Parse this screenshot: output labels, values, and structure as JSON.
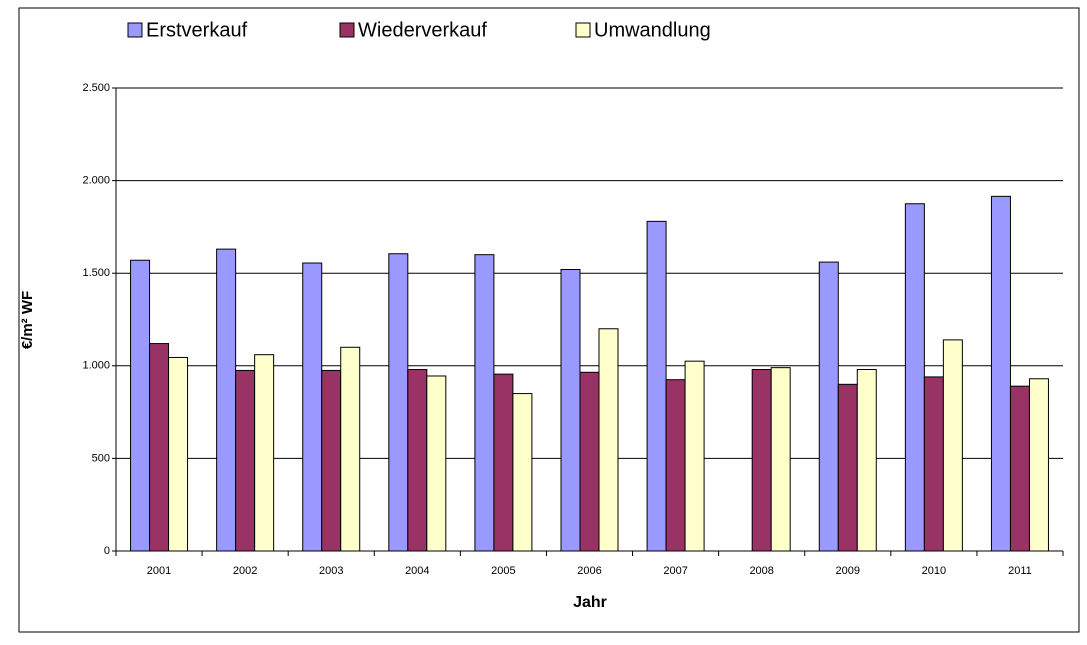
{
  "chart_data": {
    "type": "bar",
    "categories": [
      "2001",
      "2002",
      "2003",
      "2004",
      "2005",
      "2006",
      "2007",
      "2008",
      "2009",
      "2010",
      "2011"
    ],
    "series": [
      {
        "name": "Erstverkauf",
        "color": "#9999ff",
        "values": [
          1570,
          1630,
          1555,
          1605,
          1600,
          1520,
          1780,
          null,
          1560,
          1875,
          1915
        ]
      },
      {
        "name": "Wiederverkauf",
        "color": "#993366",
        "values": [
          1120,
          975,
          975,
          980,
          955,
          965,
          925,
          980,
          900,
          940,
          890
        ]
      },
      {
        "name": "Umwandlung",
        "color": "#ffffcc",
        "values": [
          1045,
          1060,
          1100,
          945,
          850,
          1200,
          1025,
          990,
          980,
          1140,
          930
        ]
      }
    ],
    "ylabel": "€/m² WF",
    "xlabel": "Jahr",
    "ylim": [
      0,
      2500
    ],
    "yticks": [
      0,
      500,
      {
        "value": 1000,
        "label": "1.000"
      },
      {
        "value": 1500,
        "label": "1.500"
      },
      {
        "value": 2000,
        "label": "2.000"
      },
      {
        "value": 2500,
        "label": "2.500"
      }
    ],
    "grid": true,
    "legend": "top"
  }
}
